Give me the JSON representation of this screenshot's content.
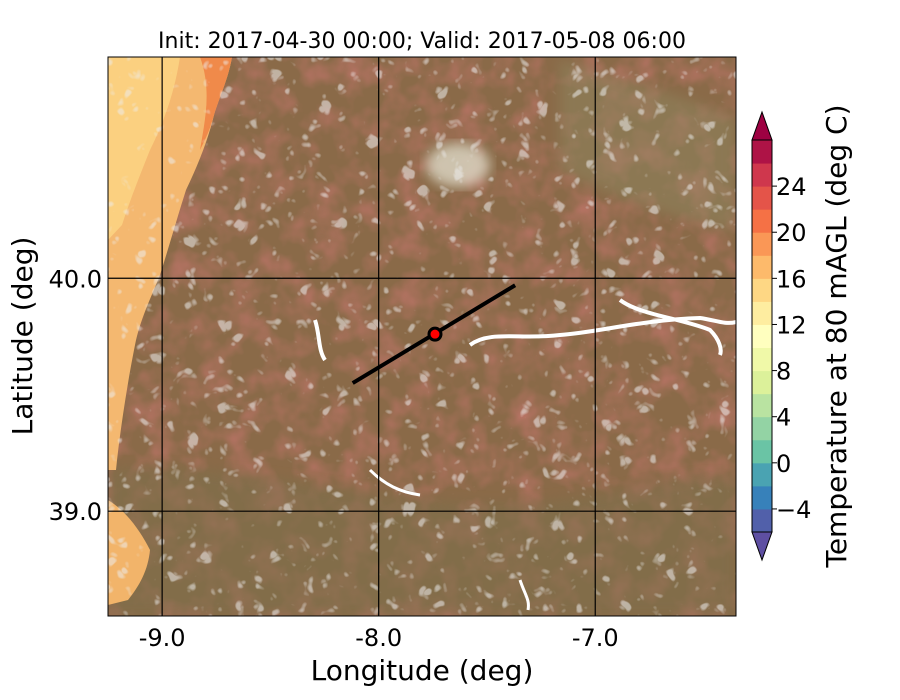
{
  "title": "Init: 2017-04-30 00:00; Valid: 2017-05-08 06:00",
  "map": {
    "xlabel": "Longitude (deg)",
    "ylabel": "Latitude (deg)",
    "xlim": [
      -9.25,
      -6.35
    ],
    "ylim": [
      38.55,
      40.95
    ],
    "x_ticks": [
      {
        "value": -9.0,
        "label": "-9.0"
      },
      {
        "value": -8.0,
        "label": "-8.0"
      },
      {
        "value": -7.0,
        "label": "-7.0"
      }
    ],
    "y_ticks": [
      {
        "value": 40.0,
        "label": "40.0"
      },
      {
        "value": 39.0,
        "label": "39.0"
      }
    ],
    "cross_section_line": {
      "start": {
        "lon": -8.12,
        "lat": 39.55
      },
      "end": {
        "lon": -7.37,
        "lat": 39.97
      },
      "color": "#000000"
    },
    "site_marker": {
      "lon": -7.74,
      "lat": 39.76,
      "fill": "#ff0000",
      "edge": "#000000"
    }
  },
  "colorbar": {
    "label": "Temperature at 80 mAGL (deg C)",
    "range": [
      -6,
      28
    ],
    "ticks": [
      {
        "value": -4,
        "label": "−4"
      },
      {
        "value": 0,
        "label": "0"
      },
      {
        "value": 4,
        "label": "4"
      },
      {
        "value": 8,
        "label": "8"
      },
      {
        "value": 12,
        "label": "12"
      },
      {
        "value": 16,
        "label": "16"
      },
      {
        "value": 20,
        "label": "20"
      },
      {
        "value": 24,
        "label": "24"
      }
    ],
    "colormap": "Spectral_r",
    "extend": "both"
  },
  "colors": {
    "terrain_base": "#8a6a48",
    "warm_coast": "#f4b870",
    "contour": "#d8d8d8",
    "gridline": "#000000"
  }
}
